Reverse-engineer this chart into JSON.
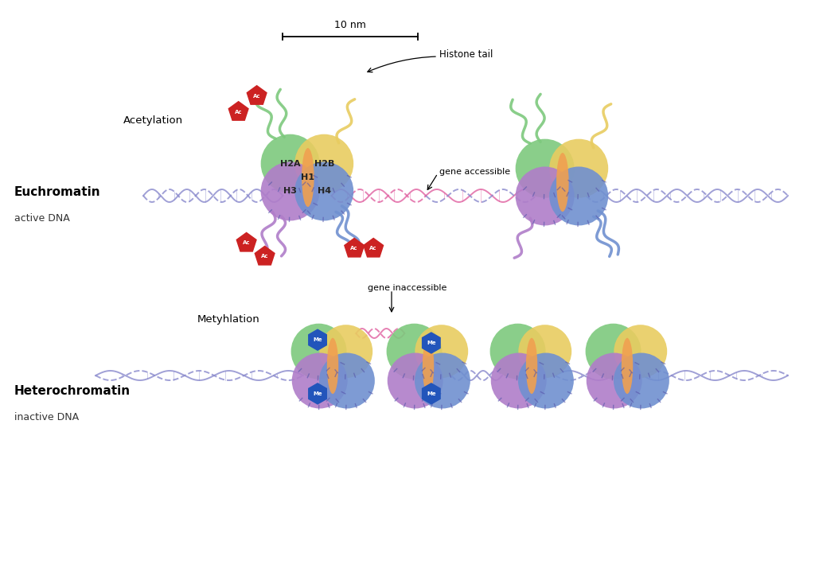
{
  "bg_color": "#ffffff",
  "histone_colors": {
    "H2A": "#7dc97d",
    "H2B": "#e8cc60",
    "H3": "#b07dc9",
    "H4": "#7090d0",
    "H1": "#f0a050"
  },
  "dna_color_eu": "#8888cc",
  "dna_color_gene": "#e060a0",
  "ac_color": "#cc2222",
  "me_color": "#3366cc",
  "label_euchromatin": "Euchromatin",
  "label_eu_sub": "active DNA",
  "label_heterochromatin": "Heterochromatin",
  "label_het_sub": "inactive DNA",
  "label_acetylation": "Acetylation",
  "label_methylation": "Metyhlation",
  "label_10nm": "10 nm",
  "label_histone_tail": "Histone tail",
  "label_gene_accessible": "gene accessible",
  "label_gene_inaccessible": "gene inaccessible"
}
